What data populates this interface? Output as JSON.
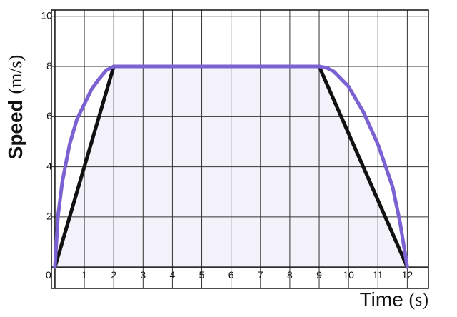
{
  "chart_data": {
    "type": "line",
    "y_label": "Speed",
    "y_label_unit": "(m/s)",
    "x_label": "Time",
    "x_label_unit": "(s)",
    "xlim": [
      -0.12,
      12.72
    ],
    "ylim": [
      -0.85,
      10.25
    ],
    "xticks": [
      0,
      1,
      2,
      3,
      4,
      5,
      6,
      7,
      8,
      9,
      10,
      11,
      12
    ],
    "yticks": [
      2,
      4,
      6,
      8,
      10
    ],
    "grid": true,
    "series": [
      {
        "color": "#111111",
        "fill": "#f3f2fb",
        "x": [
          0,
          2,
          9,
          12
        ],
        "values": [
          0,
          8,
          8,
          0
        ]
      },
      {
        "color": "#7b61d1",
        "x": [
          0,
          0.1,
          0.25,
          0.5,
          0.75,
          1,
          1.25,
          1.5,
          1.75,
          2,
          9,
          9.25,
          9.5,
          10,
          10.5,
          11,
          11.5,
          11.75,
          12
        ],
        "values": [
          0,
          2,
          3.4,
          4.9,
          5.9,
          6.5,
          7.1,
          7.5,
          7.85,
          8,
          8,
          7.95,
          7.8,
          7.2,
          6.2,
          4.9,
          3.2,
          1.8,
          0
        ]
      }
    ]
  }
}
